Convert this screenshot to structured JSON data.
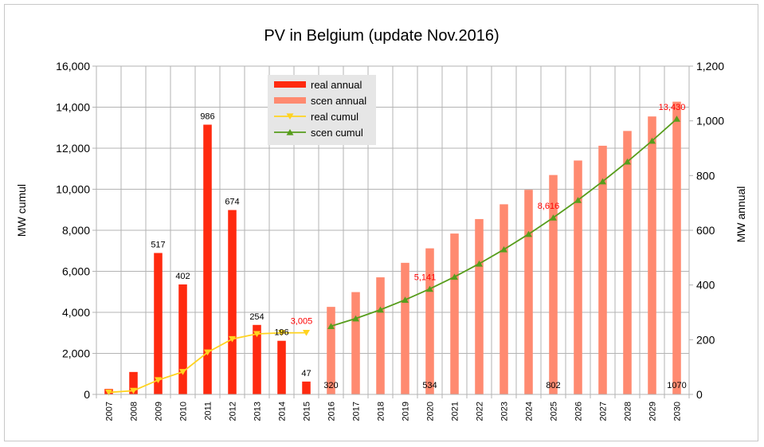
{
  "chart_data": {
    "type": "bar",
    "title": "PV in Belgium (update Nov.2016)",
    "ylabel_left": "MW cumul",
    "ylabel_right": "MW annual",
    "categories": [
      "2007",
      "2008",
      "2009",
      "2010",
      "2011",
      "2012",
      "2013",
      "2014",
      "2015",
      "2016",
      "2017",
      "2018",
      "2019",
      "2020",
      "2021",
      "2022",
      "2023",
      "2024",
      "2025",
      "2026",
      "2027",
      "2028",
      "2029",
      "2030"
    ],
    "ylim_left": [
      0,
      16000
    ],
    "yticks_left": [
      "0",
      "2,000",
      "4,000",
      "6,000",
      "8,000",
      "10,000",
      "12,000",
      "14,000",
      "16,000"
    ],
    "ylim_right": [
      0,
      1200
    ],
    "yticks_right": [
      "0",
      "200",
      "400",
      "600",
      "800",
      "1,000",
      "1,200"
    ],
    "grid": true,
    "legend_position": "top-center",
    "colors": {
      "real_annual": "#ff2a0f",
      "scen_annual": "#ff8a70",
      "real_cumul": "#ffd320",
      "scen_cumul": "#579d1c",
      "label_red": "#ff0000",
      "grid": "#b3b3b3"
    },
    "series": [
      {
        "name": "real annual",
        "axis": "right",
        "kind": "bar",
        "values": [
          20,
          82,
          517,
          402,
          986,
          674,
          254,
          196,
          47,
          null,
          null,
          null,
          null,
          null,
          null,
          null,
          null,
          null,
          null,
          null,
          null,
          null,
          null,
          null
        ]
      },
      {
        "name": "scen annual",
        "axis": "right",
        "kind": "bar",
        "values": [
          null,
          null,
          null,
          null,
          null,
          null,
          null,
          null,
          null,
          320,
          374,
          428,
          481,
          534,
          588,
          641,
          695,
          748,
          802,
          855,
          909,
          963,
          1016,
          1070
        ]
      },
      {
        "name": "real cumul",
        "axis": "left",
        "kind": "line",
        "marker": "triangle-down",
        "values": [
          100,
          180,
          700,
          1100,
          2050,
          2700,
          2950,
          3000,
          3005,
          null,
          null,
          null,
          null,
          null,
          null,
          null,
          null,
          null,
          null,
          null,
          null,
          null,
          null,
          null
        ]
      },
      {
        "name": "scen cumul",
        "axis": "left",
        "kind": "line",
        "marker": "triangle-up",
        "values": [
          null,
          null,
          null,
          null,
          null,
          null,
          null,
          null,
          null,
          3325,
          3699,
          4127,
          4608,
          5141,
          5729,
          6370,
          7065,
          7813,
          8616,
          9471,
          10380,
          11343,
          12359,
          13430
        ]
      }
    ],
    "annotations": [
      {
        "text": "517",
        "x": "2009",
        "y": 517,
        "axis": "right",
        "color": "black"
      },
      {
        "text": "402",
        "x": "2010",
        "y": 402,
        "axis": "right",
        "color": "black"
      },
      {
        "text": "986",
        "x": "2011",
        "y": 986,
        "axis": "right",
        "color": "black"
      },
      {
        "text": "674",
        "x": "2012",
        "y": 674,
        "axis": "right",
        "color": "black"
      },
      {
        "text": "254",
        "x": "2013",
        "y": 254,
        "axis": "right",
        "color": "black"
      },
      {
        "text": "196",
        "x": "2014",
        "y": 196,
        "axis": "right",
        "color": "black"
      },
      {
        "text": "47",
        "x": "2015",
        "y": 47,
        "axis": "right",
        "color": "black"
      },
      {
        "text": "3,005",
        "x": "2015",
        "y": 3005,
        "axis": "left",
        "color": "red"
      },
      {
        "text": "320",
        "x": "2016",
        "y": 0,
        "axis": "right",
        "color": "black"
      },
      {
        "text": "534",
        "x": "2020",
        "y": 0,
        "axis": "right",
        "color": "black"
      },
      {
        "text": "802",
        "x": "2025",
        "y": 0,
        "axis": "right",
        "color": "black"
      },
      {
        "text": "1070",
        "x": "2030",
        "y": 0,
        "axis": "right",
        "color": "black"
      },
      {
        "text": "5,141",
        "x": "2020",
        "y": 5141,
        "axis": "left",
        "color": "red"
      },
      {
        "text": "8,616",
        "x": "2025",
        "y": 8616,
        "axis": "left",
        "color": "red"
      },
      {
        "text": "13,430",
        "x": "2030",
        "y": 13430,
        "axis": "left",
        "color": "red"
      }
    ]
  }
}
